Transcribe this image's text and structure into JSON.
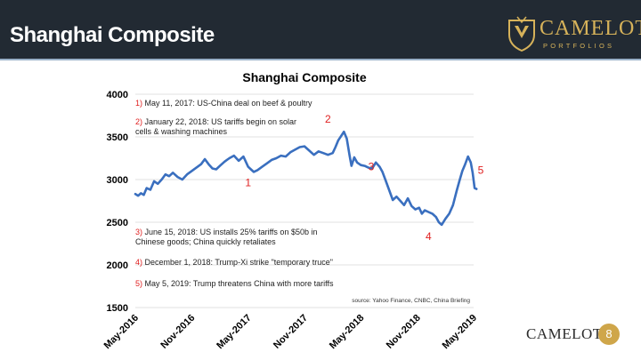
{
  "slide": {
    "title": "Shanghai Composite",
    "brand_name": "CAMELOT",
    "brand_sub": "PORTFOLIOS",
    "footer_brand": "CAMELOT",
    "page_number": "8"
  },
  "colors": {
    "header_bg": "#222a33",
    "line": "#3a6fbf",
    "marker": "#e02020",
    "gold": "#cfa64a"
  },
  "chart_data": {
    "type": "line",
    "title": "Shanghai Composite",
    "xlabel": "",
    "ylabel": "",
    "ylim": [
      1500,
      4000
    ],
    "yticks": [
      1500,
      2000,
      2500,
      3000,
      3500,
      4000
    ],
    "xlim": [
      0,
      36
    ],
    "xticks": [
      {
        "x": 0,
        "label": "May-2016"
      },
      {
        "x": 6,
        "label": "Nov-2016"
      },
      {
        "x": 12,
        "label": "May-2017"
      },
      {
        "x": 18,
        "label": "Nov-2017"
      },
      {
        "x": 24,
        "label": "May-2018"
      },
      {
        "x": 30,
        "label": "Nov-2018"
      },
      {
        "x": 36,
        "label": "May-2019"
      }
    ],
    "grid": true,
    "x_units": "months since May 2016",
    "series": [
      {
        "name": "Shanghai Composite",
        "points": [
          [
            0.0,
            2830
          ],
          [
            0.3,
            2810
          ],
          [
            0.6,
            2840
          ],
          [
            0.9,
            2820
          ],
          [
            1.2,
            2900
          ],
          [
            1.6,
            2880
          ],
          [
            2.0,
            2980
          ],
          [
            2.4,
            2950
          ],
          [
            2.8,
            3000
          ],
          [
            3.2,
            3060
          ],
          [
            3.6,
            3040
          ],
          [
            4.0,
            3080
          ],
          [
            4.5,
            3030
          ],
          [
            5.0,
            3000
          ],
          [
            5.5,
            3060
          ],
          [
            6.0,
            3100
          ],
          [
            6.5,
            3140
          ],
          [
            7.0,
            3180
          ],
          [
            7.4,
            3240
          ],
          [
            7.8,
            3180
          ],
          [
            8.2,
            3130
          ],
          [
            8.6,
            3120
          ],
          [
            9.0,
            3160
          ],
          [
            9.5,
            3210
          ],
          [
            10.0,
            3250
          ],
          [
            10.5,
            3280
          ],
          [
            11.0,
            3220
          ],
          [
            11.5,
            3270
          ],
          [
            12.0,
            3150
          ],
          [
            12.3,
            3120
          ],
          [
            12.6,
            3090
          ],
          [
            13.0,
            3110
          ],
          [
            13.5,
            3150
          ],
          [
            14.0,
            3190
          ],
          [
            14.5,
            3230
          ],
          [
            15.0,
            3250
          ],
          [
            15.5,
            3280
          ],
          [
            16.0,
            3270
          ],
          [
            16.5,
            3320
          ],
          [
            17.0,
            3350
          ],
          [
            17.5,
            3380
          ],
          [
            18.0,
            3390
          ],
          [
            18.5,
            3340
          ],
          [
            19.0,
            3290
          ],
          [
            19.5,
            3330
          ],
          [
            20.0,
            3310
          ],
          [
            20.5,
            3290
          ],
          [
            21.0,
            3310
          ],
          [
            21.3,
            3380
          ],
          [
            21.6,
            3460
          ],
          [
            21.9,
            3510
          ],
          [
            22.2,
            3560
          ],
          [
            22.5,
            3480
          ],
          [
            22.8,
            3280
          ],
          [
            23.0,
            3160
          ],
          [
            23.3,
            3260
          ],
          [
            23.6,
            3200
          ],
          [
            24.0,
            3170
          ],
          [
            24.4,
            3160
          ],
          [
            24.8,
            3140
          ],
          [
            25.2,
            3130
          ],
          [
            25.6,
            3200
          ],
          [
            26.0,
            3150
          ],
          [
            26.3,
            3090
          ],
          [
            26.6,
            3000
          ],
          [
            27.0,
            2880
          ],
          [
            27.4,
            2760
          ],
          [
            27.8,
            2800
          ],
          [
            28.2,
            2750
          ],
          [
            28.6,
            2700
          ],
          [
            29.0,
            2780
          ],
          [
            29.4,
            2690
          ],
          [
            29.8,
            2650
          ],
          [
            30.2,
            2670
          ],
          [
            30.5,
            2600
          ],
          [
            30.8,
            2640
          ],
          [
            31.2,
            2620
          ],
          [
            31.6,
            2600
          ],
          [
            32.0,
            2560
          ],
          [
            32.3,
            2500
          ],
          [
            32.6,
            2470
          ],
          [
            33.0,
            2540
          ],
          [
            33.4,
            2600
          ],
          [
            33.8,
            2700
          ],
          [
            34.2,
            2870
          ],
          [
            34.5,
            2990
          ],
          [
            34.8,
            3100
          ],
          [
            35.1,
            3180
          ],
          [
            35.4,
            3270
          ],
          [
            35.7,
            3200
          ],
          [
            35.9,
            3080
          ],
          [
            36.1,
            2900
          ],
          [
            36.3,
            2890
          ]
        ]
      }
    ],
    "markers": [
      {
        "label": "1",
        "x": 12.0,
        "y": 3150
      },
      {
        "label": "2",
        "x": 20.5,
        "y": 3560
      },
      {
        "label": "3",
        "x": 25.1,
        "y": 3170
      },
      {
        "label": "4",
        "x": 31.2,
        "y": 2460
      },
      {
        "label": "5",
        "x": 36.0,
        "y": 3110
      }
    ],
    "annotations": [
      {
        "num": "1)",
        "lines": [
          "May 11, 2017: US-China deal on beef & poultry"
        ]
      },
      {
        "num": "2)",
        "lines": [
          "January 22, 2018: US tariffs begin on solar",
          "cells & washing machines"
        ]
      },
      {
        "num": "3)",
        "lines": [
          "June 15, 2018: US installs 25% tariffs on $50b in",
          "Chinese goods; China quickly retaliates"
        ]
      },
      {
        "num": "4)",
        "lines": [
          "December 1, 2018: Trump-Xi strike \"temporary truce\""
        ]
      },
      {
        "num": "5)",
        "lines": [
          "May 5, 2019: Trump threatens China with more tariffs"
        ]
      }
    ],
    "source": "source: Yahoo Finance, CNBC, China Briefing"
  }
}
